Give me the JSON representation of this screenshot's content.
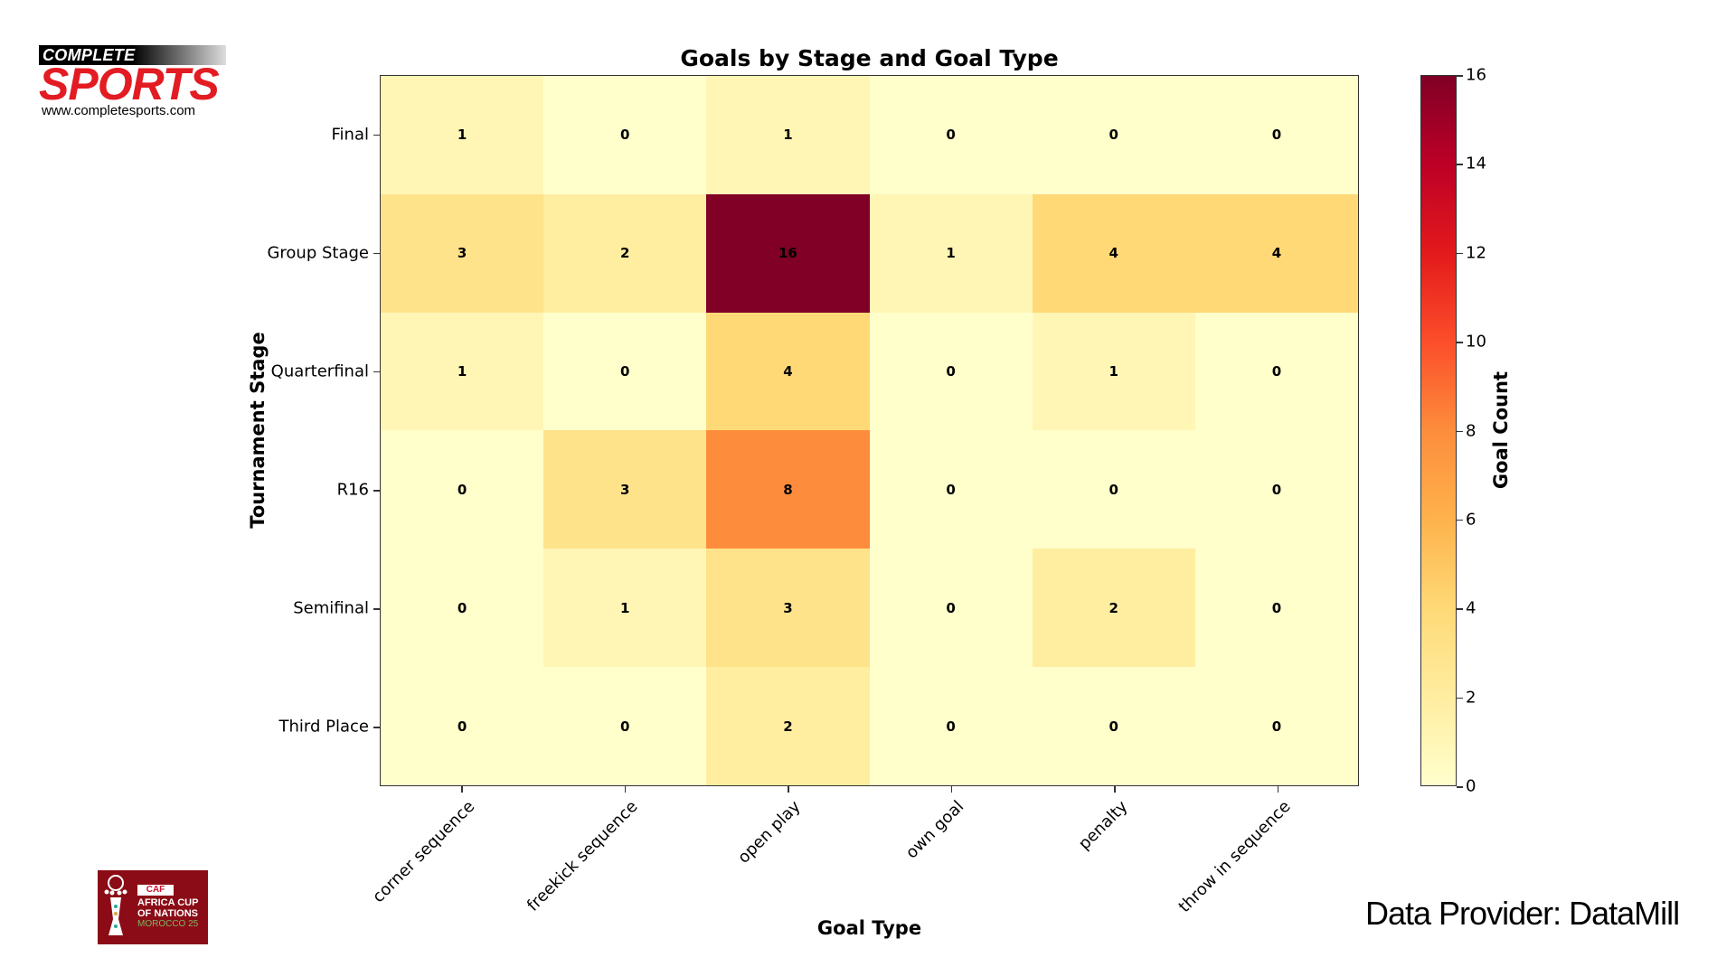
{
  "branding": {
    "top_logo": {
      "line1": "COMPLETE",
      "line2": "SPORTS",
      "url": "www.completesports.com"
    },
    "bottom_logo": {
      "badge": "CAF",
      "line1": "AFRICA CUP",
      "line2": "OF NATIONS",
      "line3": "MOROCCO 25"
    },
    "provider": "Data Provider:  DataMill"
  },
  "chart_data": {
    "type": "heatmap",
    "title": "Goals by Stage and Goal Type",
    "xlabel": "Goal Type",
    "ylabel": "Tournament Stage",
    "x": [
      "corner sequence",
      "freekick sequence",
      "open play",
      "own goal",
      "penalty",
      "throw in sequence"
    ],
    "y": [
      "Final",
      "Group Stage",
      "Quarterfinal",
      "R16",
      "Semifinal",
      "Third Place"
    ],
    "values": [
      [
        1,
        0,
        1,
        0,
        0,
        0
      ],
      [
        3,
        2,
        16,
        1,
        4,
        4
      ],
      [
        1,
        0,
        4,
        0,
        1,
        0
      ],
      [
        0,
        3,
        8,
        0,
        0,
        0
      ],
      [
        0,
        1,
        3,
        0,
        2,
        0
      ],
      [
        0,
        0,
        2,
        0,
        0,
        0
      ]
    ],
    "colormap": "YlOrRd",
    "colorbar": {
      "label": "Goal Count",
      "range": [
        0,
        16
      ],
      "ticks": [
        "0",
        "2",
        "4",
        "6",
        "8",
        "10",
        "12",
        "14",
        "16"
      ]
    },
    "colors": {
      "low": "#ffffcc",
      "high": "#800026"
    }
  }
}
